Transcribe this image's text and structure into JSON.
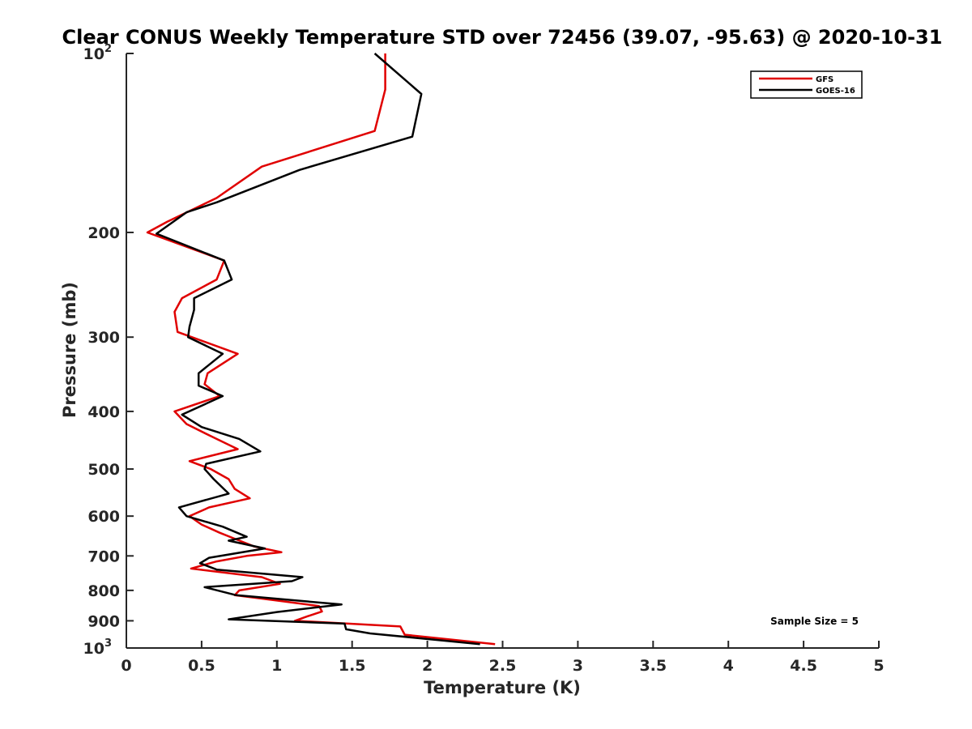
{
  "chart_data": {
    "type": "line",
    "title": "Clear CONUS Weekly Temperature STD over 72456 (39.07, -95.63) @ 2020-10-31",
    "xlabel": "Temperature (K)",
    "ylabel": "Pressure (mb)",
    "xlim": [
      0,
      5
    ],
    "ylim": [
      100,
      1000
    ],
    "yscale": "log",
    "y_reversed": true,
    "x_ticks": [
      {
        "value": 0,
        "label": "0"
      },
      {
        "value": 0.5,
        "label": "0.5"
      },
      {
        "value": 1,
        "label": "1"
      },
      {
        "value": 1.5,
        "label": "1.5"
      },
      {
        "value": 2,
        "label": "2"
      },
      {
        "value": 2.5,
        "label": "2.5"
      },
      {
        "value": 3,
        "label": "3"
      },
      {
        "value": 3.5,
        "label": "3.5"
      },
      {
        "value": 4,
        "label": "4"
      },
      {
        "value": 4.5,
        "label": "4.5"
      },
      {
        "value": 5,
        "label": "5"
      }
    ],
    "y_ticks": [
      {
        "value": 100,
        "label": "10",
        "exponent": "2"
      },
      {
        "value": 200,
        "label": "200"
      },
      {
        "value": 300,
        "label": "300"
      },
      {
        "value": 400,
        "label": "400"
      },
      {
        "value": 500,
        "label": "500"
      },
      {
        "value": 600,
        "label": "600"
      },
      {
        "value": 700,
        "label": "700"
      },
      {
        "value": 800,
        "label": "800"
      },
      {
        "value": 900,
        "label": "900"
      },
      {
        "value": 1000,
        "label": "10",
        "exponent": "3"
      }
    ],
    "legend_position": "top-right",
    "annotation": "Sample Size = 5",
    "series": [
      {
        "name": "GFS",
        "color": "#e00000",
        "points": [
          [
            1.72,
            100
          ],
          [
            1.72,
            115
          ],
          [
            1.65,
            135
          ],
          [
            0.9,
            155
          ],
          [
            0.6,
            175
          ],
          [
            0.27,
            192
          ],
          [
            0.14,
            200
          ],
          [
            0.65,
            223
          ],
          [
            0.6,
            240
          ],
          [
            0.37,
            258
          ],
          [
            0.32,
            272
          ],
          [
            0.34,
            294
          ],
          [
            0.74,
            320
          ],
          [
            0.54,
            345
          ],
          [
            0.52,
            360
          ],
          [
            0.62,
            377
          ],
          [
            0.32,
            400
          ],
          [
            0.4,
            420
          ],
          [
            0.56,
            440
          ],
          [
            0.74,
            463
          ],
          [
            0.42,
            485
          ],
          [
            0.56,
            500
          ],
          [
            0.68,
            520
          ],
          [
            0.72,
            540
          ],
          [
            0.82,
            560
          ],
          [
            0.55,
            580
          ],
          [
            0.42,
            600
          ],
          [
            0.5,
            620
          ],
          [
            0.62,
            640
          ],
          [
            0.72,
            655
          ],
          [
            0.85,
            675
          ],
          [
            1.03,
            690
          ],
          [
            0.8,
            700
          ],
          [
            0.6,
            715
          ],
          [
            0.43,
            735
          ],
          [
            0.9,
            760
          ],
          [
            1.02,
            780
          ],
          [
            0.75,
            800
          ],
          [
            0.72,
            815
          ],
          [
            1.0,
            832
          ],
          [
            1.28,
            850
          ],
          [
            1.3,
            868
          ],
          [
            1.2,
            885
          ],
          [
            1.12,
            900
          ],
          [
            1.82,
            920
          ],
          [
            1.85,
            950
          ],
          [
            2.45,
            985
          ]
        ]
      },
      {
        "name": "GOES-16",
        "color": "#000000",
        "points": [
          [
            1.65,
            100
          ],
          [
            1.96,
            117
          ],
          [
            1.9,
            138
          ],
          [
            1.15,
            157
          ],
          [
            0.6,
            178
          ],
          [
            0.4,
            185
          ],
          [
            0.2,
            201
          ],
          [
            0.65,
            223
          ],
          [
            0.7,
            240
          ],
          [
            0.45,
            258
          ],
          [
            0.45,
            270
          ],
          [
            0.42,
            288
          ],
          [
            0.41,
            300
          ],
          [
            0.64,
            320
          ],
          [
            0.48,
            345
          ],
          [
            0.48,
            362
          ],
          [
            0.64,
            377
          ],
          [
            0.37,
            405
          ],
          [
            0.5,
            425
          ],
          [
            0.75,
            445
          ],
          [
            0.89,
            467
          ],
          [
            0.53,
            490
          ],
          [
            0.52,
            500
          ],
          [
            0.58,
            520
          ],
          [
            0.68,
            550
          ],
          [
            0.35,
            580
          ],
          [
            0.4,
            600
          ],
          [
            0.64,
            625
          ],
          [
            0.8,
            650
          ],
          [
            0.68,
            660
          ],
          [
            0.92,
            680
          ],
          [
            0.55,
            705
          ],
          [
            0.49,
            720
          ],
          [
            0.6,
            738
          ],
          [
            1.17,
            760
          ],
          [
            1.1,
            772
          ],
          [
            0.52,
            790
          ],
          [
            0.73,
            815
          ],
          [
            1.43,
            845
          ],
          [
            1.0,
            870
          ],
          [
            0.68,
            895
          ],
          [
            1.45,
            910
          ],
          [
            1.46,
            930
          ],
          [
            1.62,
            945
          ],
          [
            2.35,
            985
          ]
        ]
      }
    ]
  }
}
